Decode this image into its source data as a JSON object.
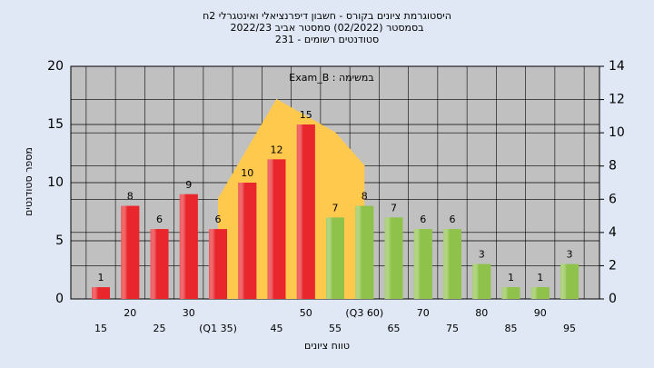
{
  "chart_data": {
    "type": "bar",
    "title": "היסטוגרמת ציונים בקורס - חשבון דיפרנציאלי ואינטגרלי 2ח",
    "subtitle": [
      "בסמסטר (02/2022) סמסטר אביב 2022/23",
      "סטודנטים רשומים - 231"
    ],
    "annotation": "במשימה : Exam_B",
    "xlabel": "טווח ציונים",
    "ylabel": "מספר סטודנטים",
    "categories": [
      "15",
      "20",
      "25",
      "30",
      "(Q1 35)",
      null,
      "45",
      "50",
      "55",
      "(Q3 60)",
      "65",
      "70",
      "75",
      "80",
      "85",
      "90",
      "95"
    ],
    "values": [
      1,
      8,
      6,
      9,
      6,
      10,
      12,
      15,
      7,
      8,
      7,
      6,
      6,
      3,
      1,
      1,
      3
    ],
    "bar_colors": [
      "#e8262b",
      "#e8262b",
      "#e8262b",
      "#e8262b",
      "#e8262b",
      "#e8262b",
      "#e8262b",
      "#e8262b",
      "#8fc24a",
      "#8fc24a",
      "#8fc24a",
      "#8fc24a",
      "#8fc24a",
      "#8fc24a",
      "#8fc24a",
      "#8fc24a",
      "#8fc24a"
    ],
    "curve": {
      "axis": "y2",
      "color": "#ffc94d",
      "values": [
        null,
        null,
        null,
        null,
        6,
        9,
        12,
        11,
        10,
        8,
        null,
        null,
        null,
        null,
        null,
        null,
        null
      ]
    },
    "ylim": [
      0,
      20
    ],
    "yticks": [
      0,
      5,
      10,
      15,
      20
    ],
    "y2lim": [
      0,
      14
    ],
    "y2ticks": [
      0,
      2,
      4,
      6,
      8,
      10,
      12,
      14
    ],
    "grid": true
  }
}
